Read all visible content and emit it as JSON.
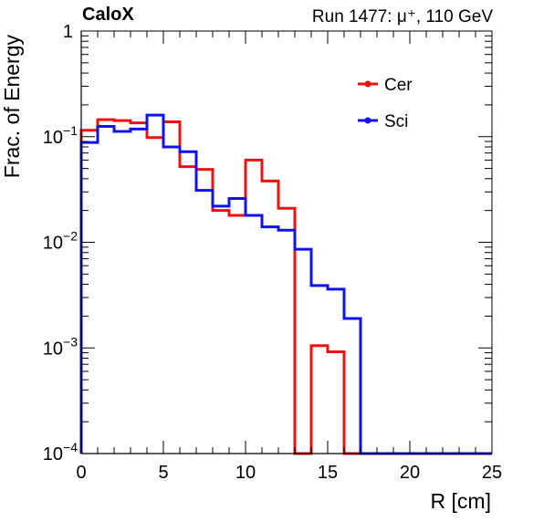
{
  "header": {
    "experiment": "CaloX",
    "run_info": "Run 1477:   μ⁺, 110 GeV"
  },
  "chart_data": {
    "type": "line",
    "title": "",
    "xlabel": "R [cm]",
    "ylabel": "Frac. of Energy",
    "xlim": [
      0,
      25
    ],
    "ylim": [
      0.0001,
      1
    ],
    "yscale": "log",
    "x_ticks": [
      "0",
      "5",
      "10",
      "15",
      "20",
      "25"
    ],
    "y_ticks": [
      {
        "base": "10",
        "exp": "−4"
      },
      {
        "base": "10",
        "exp": "−3"
      },
      {
        "base": "10",
        "exp": "−2"
      },
      {
        "base": "10",
        "exp": "−1"
      },
      {
        "base": "1",
        "exp": ""
      }
    ],
    "legend_position": "top-right",
    "bin_edges": [
      0,
      1,
      2,
      3,
      4,
      5,
      6,
      7,
      8,
      9,
      10,
      11,
      12,
      13,
      14,
      15,
      16,
      17,
      18,
      19,
      20,
      21,
      22,
      23,
      24,
      25
    ],
    "series": [
      {
        "name": "Cer",
        "color": "#ee1111",
        "values": [
          0.115,
          0.145,
          0.142,
          0.135,
          0.098,
          0.138,
          0.052,
          0.049,
          0.02,
          0.018,
          0.06,
          0.038,
          0.021,
          0.0001,
          0.00105,
          0.00092,
          0.0001,
          0.0001,
          0.0001,
          0.0001,
          0.0001,
          0.0001,
          0.0001,
          0.0001,
          0.0001
        ]
      },
      {
        "name": "Sci",
        "color": "#1111ee",
        "values": [
          0.088,
          0.125,
          0.112,
          0.118,
          0.16,
          0.08,
          0.072,
          0.031,
          0.022,
          0.026,
          0.018,
          0.014,
          0.013,
          0.0086,
          0.0039,
          0.0036,
          0.0019,
          0.0001,
          0.0001,
          0.0001,
          0.0001,
          0.0001,
          0.0001,
          0.0001,
          0.0001
        ]
      }
    ]
  }
}
